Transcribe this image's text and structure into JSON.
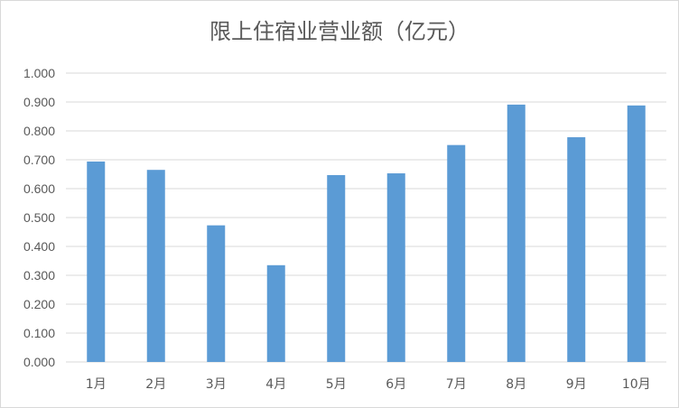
{
  "chart_data": {
    "type": "bar",
    "title": "限上住宿业营业额（亿元）",
    "xlabel": "",
    "ylabel": "",
    "categories": [
      "1月",
      "2月",
      "3月",
      "4月",
      "5月",
      "6月",
      "7月",
      "8月",
      "9月",
      "10月"
    ],
    "values": [
      0.694,
      0.665,
      0.473,
      0.335,
      0.647,
      0.653,
      0.751,
      0.891,
      0.778,
      0.888
    ],
    "ylim": [
      0,
      1.0
    ],
    "yticks": [
      "0.000",
      "0.100",
      "0.200",
      "0.300",
      "0.400",
      "0.500",
      "0.600",
      "0.700",
      "0.800",
      "0.900",
      "1.000"
    ],
    "grid": true,
    "legend": "none",
    "bar_color": "#5b9bd5",
    "grid_color": "#d9d9d9"
  }
}
